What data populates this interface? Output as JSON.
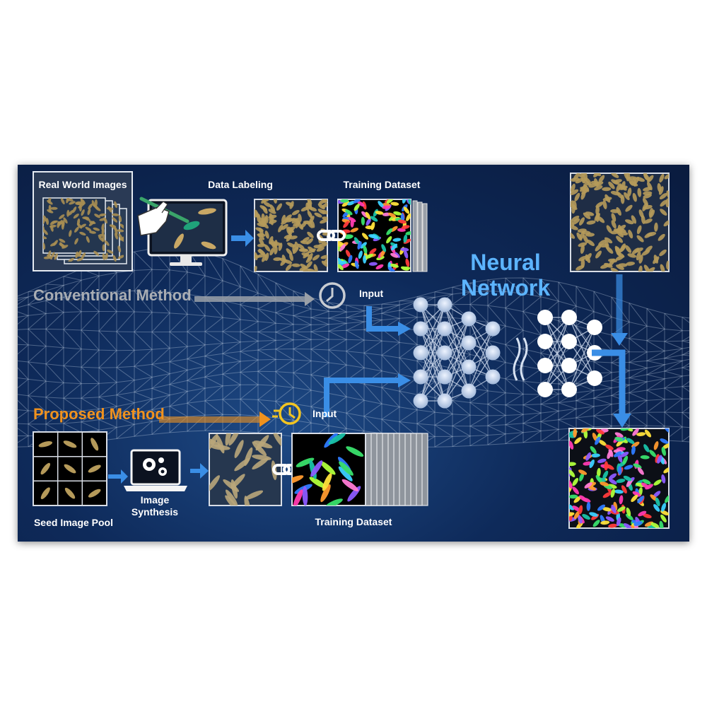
{
  "labels": {
    "real_world_images": "Real World Images",
    "data_labeling": "Data Labeling",
    "training_dataset_top": "Training Dataset",
    "conventional_method": "Conventional Method",
    "input_top": "Input",
    "neural_network": "Neural Network",
    "proposed_method": "Proposed Method",
    "input_bottom": "Input",
    "image_synthesis": "Image Synthesis",
    "seed_image_pool": "Seed Image Pool",
    "training_dataset_bottom": "Training Dataset"
  },
  "colors": {
    "background": "#0e2a5a",
    "arrow_blue": "#3a8ee6",
    "conventional_gray": "#a9adb3",
    "proposed_orange": "#f0921e",
    "neural_title": "#5cb4ff",
    "seed": "#b59a5a"
  },
  "icons": [
    "clock-icon",
    "fast-clock-icon",
    "link-icon",
    "gear-icon",
    "laptop-icon",
    "monitor-icon",
    "hand-pen-icon"
  ]
}
